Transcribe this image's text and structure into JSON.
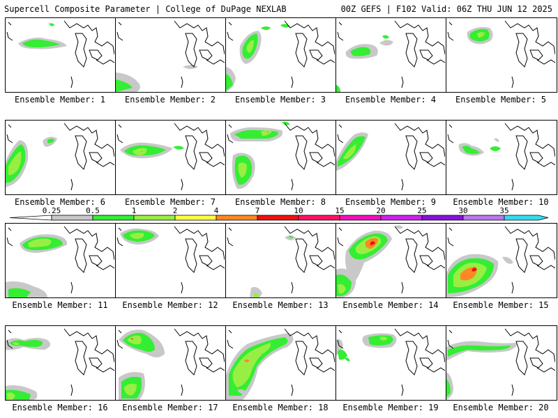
{
  "header": {
    "left": "Supercell Composite Parameter | College of DuPage NEXLAB",
    "right": "00Z GEFS | F102 Valid: 06Z THU JUN 12 2025"
  },
  "colorbar": {
    "levels": [
      "0.25",
      "0.5",
      "1",
      "2",
      "4",
      "7",
      "10",
      "15",
      "20",
      "25",
      "30",
      "35"
    ],
    "colors": [
      "#c8c8c8",
      "#33ee33",
      "#99ee44",
      "#ffff44",
      "#ff8822",
      "#ee1111",
      "#ff1166",
      "#ee11bb",
      "#cc22ee",
      "#8811dd",
      "#bb77ee",
      "#33ddee"
    ]
  },
  "members": [
    {
      "label": "Ensemble Member: 1"
    },
    {
      "label": "Ensemble Member: 2"
    },
    {
      "label": "Ensemble Member: 3"
    },
    {
      "label": "Ensemble Member: 4"
    },
    {
      "label": "Ensemble Member: 5"
    },
    {
      "label": "Ensemble Member: 6"
    },
    {
      "label": "Ensemble Member: 7"
    },
    {
      "label": "Ensemble Member: 8"
    },
    {
      "label": "Ensemble Member: 9"
    },
    {
      "label": "Ensemble Member: 10"
    },
    {
      "label": "Ensemble Member: 11"
    },
    {
      "label": "Ensemble Member: 12"
    },
    {
      "label": "Ensemble Member: 13"
    },
    {
      "label": "Ensemble Member: 14"
    },
    {
      "label": "Ensemble Member: 15"
    },
    {
      "label": "Ensemble Member: 16"
    },
    {
      "label": "Ensemble Member: 17"
    },
    {
      "label": "Ensemble Member: 18"
    },
    {
      "label": "Ensemble Member: 19"
    },
    {
      "label": "Ensemble Member: 20"
    }
  ]
}
